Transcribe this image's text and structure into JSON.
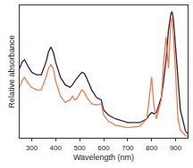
{
  "chart_data": {
    "type": "line",
    "x_label": "Wavelength (nm)",
    "y_label": "Relative absorbance",
    "x": [
      250,
      260,
      270,
      280,
      290,
      300,
      320,
      340,
      360,
      370,
      380,
      390,
      400,
      420,
      440,
      460,
      470,
      480,
      490,
      500,
      510,
      520,
      530,
      550,
      570,
      590,
      600,
      620,
      650,
      700,
      750,
      780,
      790,
      800,
      810,
      820,
      840,
      850,
      860,
      870,
      880,
      885,
      890,
      900,
      910,
      920,
      940,
      950
    ],
    "series": [
      {
        "color": "#3b1b2e",
        "values": [
          0.55,
          0.6,
          0.62,
          0.58,
          0.55,
          0.52,
          0.5,
          0.5,
          0.6,
          0.68,
          0.72,
          0.68,
          0.6,
          0.48,
          0.42,
          0.4,
          0.42,
          0.45,
          0.48,
          0.5,
          0.52,
          0.51,
          0.47,
          0.38,
          0.32,
          0.3,
          0.22,
          0.18,
          0.15,
          0.12,
          0.12,
          0.15,
          0.18,
          0.2,
          0.19,
          0.2,
          0.32,
          0.45,
          0.62,
          0.85,
          0.98,
          1.0,
          0.95,
          0.72,
          0.45,
          0.22,
          0.06,
          0.03
        ]
      },
      {
        "color": "#ee7b4a",
        "values": [
          0.4,
          0.45,
          0.48,
          0.45,
          0.42,
          0.4,
          0.38,
          0.38,
          0.48,
          0.55,
          0.58,
          0.55,
          0.45,
          0.33,
          0.28,
          0.3,
          0.33,
          0.3,
          0.31,
          0.35,
          0.38,
          0.36,
          0.32,
          0.27,
          0.26,
          0.27,
          0.18,
          0.13,
          0.1,
          0.08,
          0.09,
          0.15,
          0.3,
          0.48,
          0.25,
          0.15,
          0.3,
          0.6,
          0.8,
          0.55,
          0.92,
          0.95,
          0.85,
          0.45,
          0.15,
          0.06,
          0.02,
          0.01
        ]
      }
    ],
    "xlim": [
      250,
      950
    ],
    "xticks": [
      300,
      400,
      500,
      600,
      700,
      800,
      900
    ],
    "ylim": [
      0,
      1.05
    ],
    "tick_labels": "x",
    "grid": false
  }
}
